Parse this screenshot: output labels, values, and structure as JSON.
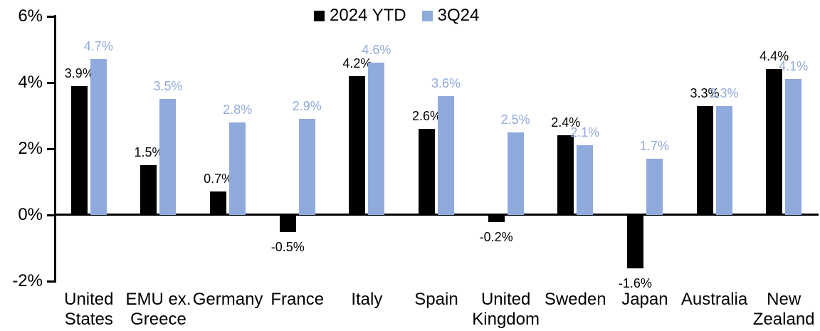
{
  "chart_data": {
    "type": "bar",
    "categories": [
      "United States",
      "EMU ex. Greece",
      "Germany",
      "France",
      "Italy",
      "Spain",
      "United Kingdom",
      "Sweden",
      "Japan",
      "Australia",
      "New Zealand"
    ],
    "category_label_lines": [
      [
        "United",
        "States"
      ],
      [
        "EMU ex.",
        "Greece"
      ],
      [
        "Germany"
      ],
      [
        "France"
      ],
      [
        "Italy"
      ],
      [
        "Spain"
      ],
      [
        "United",
        "Kingdom"
      ],
      [
        "Sweden"
      ],
      [
        "Japan"
      ],
      [
        "Australia"
      ],
      [
        "New",
        "Zealand"
      ]
    ],
    "series": [
      {
        "name": "2024 YTD",
        "color": "#000000",
        "values": [
          3.9,
          1.5,
          0.7,
          -0.5,
          4.2,
          2.6,
          -0.2,
          2.4,
          -1.6,
          3.3,
          4.4
        ],
        "labels": [
          "3.9%",
          "1.5%",
          "0.7%",
          "-0.5%",
          "4.2%",
          "2.6%",
          "-0.2%",
          "2.4%",
          "-1.6%",
          "3.3%",
          "4.4%"
        ]
      },
      {
        "name": "3Q24",
        "color": "#8FAADC",
        "values": [
          4.7,
          3.5,
          2.8,
          2.9,
          4.6,
          3.6,
          2.5,
          2.1,
          1.7,
          3.3,
          4.1
        ],
        "labels": [
          "4.7%",
          "3.5%",
          "2.8%",
          "2.9%",
          "4.6%",
          "3.6%",
          "2.5%",
          "2.1%",
          "1.7%",
          "3.3%",
          "4.1%"
        ]
      }
    ],
    "ylim": [
      -2,
      6
    ],
    "yticks": [
      {
        "value": 6,
        "label": "6%"
      },
      {
        "value": 4,
        "label": "4%"
      },
      {
        "value": 2,
        "label": "2%"
      },
      {
        "value": 0,
        "label": "0%"
      },
      {
        "value": -2,
        "label": "-2%"
      }
    ],
    "grid": false,
    "legend_position": "top-center",
    "data_labels": "outside-end"
  }
}
